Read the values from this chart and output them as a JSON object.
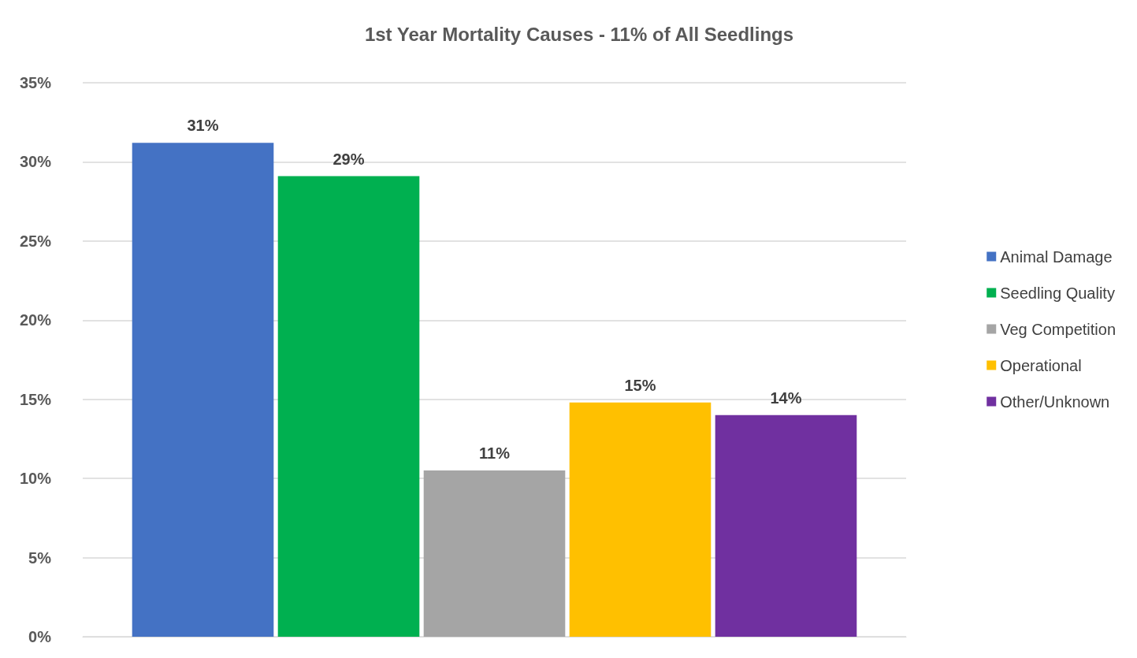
{
  "chart_data": {
    "type": "bar",
    "title": "1st Year Mortality Causes - 11% of All Seedlings",
    "categories": [
      null
    ],
    "series": [
      {
        "name": "Animal Damage",
        "color": "#4472c4",
        "values": [
          31.2
        ],
        "value_labels": [
          "31%"
        ]
      },
      {
        "name": "Seedling Quality",
        "color": "#00b050",
        "values": [
          29.1
        ],
        "value_labels": [
          "29%"
        ]
      },
      {
        "name": "Veg Competition",
        "color": "#a5a5a5",
        "values": [
          10.5
        ],
        "value_labels": [
          "11%"
        ]
      },
      {
        "name": "Operational",
        "color": "#ffc000",
        "values": [
          14.8
        ],
        "value_labels": [
          "15%"
        ]
      },
      {
        "name": "Other/Unknown",
        "color": "#7030a0",
        "values": [
          14.0
        ],
        "value_labels": [
          "14%"
        ]
      }
    ],
    "ylim": [
      0,
      35
    ],
    "yticks": [
      {
        "value": 0,
        "label": "0%"
      },
      {
        "value": 5,
        "label": "5%"
      },
      {
        "value": 10,
        "label": "10%"
      },
      {
        "value": 15,
        "label": "15%"
      },
      {
        "value": 20,
        "label": "20%"
      },
      {
        "value": 25,
        "label": "25%"
      },
      {
        "value": 30,
        "label": "30%"
      },
      {
        "value": 35,
        "label": "35%"
      }
    ],
    "grid": "y",
    "legend": "right"
  }
}
